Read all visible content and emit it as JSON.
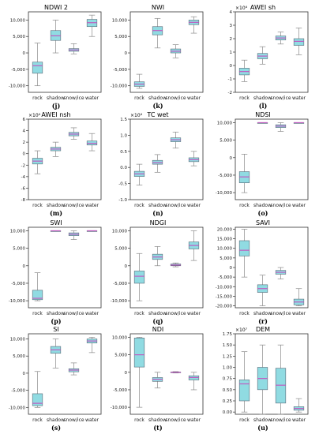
{
  "chart_data": [
    {
      "label": "(j)",
      "type": "box",
      "title": "NDWI 2",
      "categories": [
        "rock",
        "shadow",
        "snow/ice",
        "water"
      ],
      "ylim": [
        -12000,
        12500
      ],
      "yticks": [
        -10000,
        -5000,
        0,
        5000,
        10000
      ],
      "ytick_labels": [
        "-10,000",
        "-5,000",
        "0",
        "5,000",
        "10,000"
      ],
      "exponent": "",
      "boxes": [
        {
          "whislo": -10000,
          "q1": -6200,
          "med": -3900,
          "q3": -2800,
          "whishi": 3000
        },
        {
          "whislo": 0,
          "q1": 3800,
          "med": 5200,
          "q3": 6800,
          "whishi": 10000
        },
        {
          "whislo": -300,
          "q1": 500,
          "med": 900,
          "q3": 1300,
          "whishi": 2800
        },
        {
          "whislo": 5000,
          "q1": 8000,
          "med": 9200,
          "q3": 10200,
          "whishi": 11500
        }
      ]
    },
    {
      "label": "(k)",
      "type": "box",
      "title": "NWI",
      "categories": [
        "rock",
        "shadow",
        "snow/ice",
        "water"
      ],
      "ylim": [
        -12000,
        12500
      ],
      "yticks": [
        -10000,
        -5000,
        0,
        5000,
        10000
      ],
      "ytick_labels": [
        "-10,000",
        "-5,000",
        "0",
        "5,000",
        "10,000"
      ],
      "exponent": "",
      "boxes": [
        {
          "whislo": -10800,
          "q1": -10200,
          "med": -9500,
          "q3": -8800,
          "whishi": -6500
        },
        {
          "whislo": 1500,
          "q1": 5500,
          "med": 6800,
          "q3": 8000,
          "whishi": 10500
        },
        {
          "whislo": -1500,
          "q1": 0,
          "med": 500,
          "q3": 1200,
          "whishi": 2500
        },
        {
          "whislo": 6000,
          "q1": 8600,
          "med": 9300,
          "q3": 10000,
          "whishi": 11000
        }
      ]
    },
    {
      "label": "(l)",
      "type": "box",
      "title": "AWEI sh",
      "categories": [
        "rock",
        "shadow",
        "snow/ice",
        "water"
      ],
      "ylim": [
        -2,
        4
      ],
      "yticks": [
        -2,
        -1,
        0,
        1,
        2,
        3,
        4
      ],
      "ytick_labels": [
        "-2",
        "-1",
        "0",
        "1",
        "2",
        "3",
        "4"
      ],
      "exponent": "×10⁴",
      "boxes": [
        {
          "whislo": -1.2,
          "q1": -0.7,
          "med": -0.45,
          "q3": -0.2,
          "whishi": 0.4
        },
        {
          "whislo": 0.1,
          "q1": 0.5,
          "med": 0.7,
          "q3": 0.9,
          "whishi": 1.4
        },
        {
          "whislo": 1.6,
          "q1": 1.9,
          "med": 2.05,
          "q3": 2.2,
          "whishi": 2.5
        },
        {
          "whislo": 0.8,
          "q1": 1.5,
          "med": 1.8,
          "q3": 2.0,
          "whishi": 2.8
        }
      ]
    },
    {
      "label": "(m)",
      "type": "box",
      "title": "AWEI nsh",
      "categories": [
        "rock",
        "shadow",
        "snow/ice",
        "water"
      ],
      "ylim": [
        -8,
        6
      ],
      "yticks": [
        -8,
        -6,
        -4,
        -2,
        0,
        2,
        4,
        6
      ],
      "ytick_labels": [
        "-8",
        "-6",
        "-4",
        "-2",
        "0",
        "2",
        "4",
        "6"
      ],
      "exponent": "×10⁴",
      "boxes": [
        {
          "whislo": -3.5,
          "q1": -1.8,
          "med": -1.3,
          "q3": -0.8,
          "whishi": 0.5
        },
        {
          "whislo": -0.5,
          "q1": 0.5,
          "med": 0.8,
          "q3": 1.1,
          "whishi": 2.0
        },
        {
          "whislo": 2.5,
          "q1": 3.1,
          "med": 3.4,
          "q3": 3.7,
          "whishi": 4.5
        },
        {
          "whislo": 0.5,
          "q1": 1.5,
          "med": 1.8,
          "q3": 2.2,
          "whishi": 3.5
        }
      ]
    },
    {
      "label": "(n)",
      "type": "box",
      "title": "TC wet",
      "categories": [
        "rock",
        "shadow",
        "snow/ice",
        "water"
      ],
      "ylim": [
        -1.0,
        1.5
      ],
      "yticks": [
        -1.0,
        -0.5,
        0.0,
        0.5,
        1.0,
        1.5
      ],
      "ytick_labels": [
        "-1.0",
        "-0.5",
        "0.0",
        "0.5",
        "1.0",
        "1.5"
      ],
      "exponent": "×10⁴",
      "boxes": [
        {
          "whislo": -0.55,
          "q1": -0.28,
          "med": -0.2,
          "q3": -0.12,
          "whishi": 0.1
        },
        {
          "whislo": -0.15,
          "q1": 0.1,
          "med": 0.15,
          "q3": 0.22,
          "whishi": 0.4
        },
        {
          "whislo": 0.6,
          "q1": 0.8,
          "med": 0.86,
          "q3": 0.92,
          "whishi": 1.1
        },
        {
          "whislo": 0.05,
          "q1": 0.18,
          "med": 0.24,
          "q3": 0.3,
          "whishi": 0.5
        }
      ]
    },
    {
      "label": "(o)",
      "type": "box",
      "title": "NDSI",
      "categories": [
        "rock",
        "shadow",
        "snow/ice",
        "water"
      ],
      "ylim": [
        -12000,
        11000
      ],
      "yticks": [
        -10000,
        -5000,
        0,
        5000,
        10000
      ],
      "ytick_labels": [
        "-10,000",
        "-5,000",
        "0",
        "5,000",
        "10,000"
      ],
      "exponent": "",
      "boxes": [
        {
          "whislo": -10000,
          "q1": -7200,
          "med": -5500,
          "q3": -4000,
          "whishi": 1000
        },
        {
          "whislo": 9900,
          "q1": 9980,
          "med": 10000,
          "q3": 10000,
          "whishi": 10000
        },
        {
          "whislo": 7500,
          "q1": 8600,
          "med": 9000,
          "q3": 9400,
          "whishi": 10000
        },
        {
          "whislo": 9900,
          "q1": 9980,
          "med": 10000,
          "q3": 10000,
          "whishi": 10000
        }
      ]
    },
    {
      "label": "(p)",
      "type": "box",
      "title": "SWI",
      "categories": [
        "rock",
        "shadow",
        "snow/ice",
        "water"
      ],
      "ylim": [
        -12000,
        11000
      ],
      "yticks": [
        -10000,
        -5000,
        0,
        5000,
        10000
      ],
      "ytick_labels": [
        "-10,000",
        "-5,000",
        "0",
        "5,000",
        "10,000"
      ],
      "exponent": "",
      "boxes": [
        {
          "whislo": -10000,
          "q1": -9700,
          "med": -9300,
          "q3": -7000,
          "whishi": -2000
        },
        {
          "whislo": 9900,
          "q1": 9980,
          "med": 10000,
          "q3": 10000,
          "whishi": 10000
        },
        {
          "whislo": 7500,
          "q1": 8600,
          "med": 9000,
          "q3": 9400,
          "whishi": 10000
        },
        {
          "whislo": 9900,
          "q1": 9980,
          "med": 10000,
          "q3": 10000,
          "whishi": 10000
        }
      ]
    },
    {
      "label": "(q)",
      "type": "box",
      "title": "NDGI",
      "categories": [
        "rock",
        "shadow",
        "snow/ice",
        "water"
      ],
      "ylim": [
        -12000,
        11000
      ],
      "yticks": [
        -10000,
        -5000,
        0,
        5000,
        10000
      ],
      "ytick_labels": [
        "-10,000",
        "-5,000",
        "0",
        "5,000",
        "10,000"
      ],
      "exponent": "",
      "boxes": [
        {
          "whislo": -10000,
          "q1": -5000,
          "med": -3000,
          "q3": -1500,
          "whishi": 3500
        },
        {
          "whislo": 0,
          "q1": 1800,
          "med": 2500,
          "q3": 3300,
          "whishi": 5500
        },
        {
          "whislo": -300,
          "q1": 0,
          "med": 200,
          "q3": 500,
          "whishi": 800
        },
        {
          "whislo": 1500,
          "q1": 4800,
          "med": 5800,
          "q3": 6800,
          "whishi": 10000
        }
      ]
    },
    {
      "label": "(r)",
      "type": "box",
      "title": "SAVI",
      "categories": [
        "rock",
        "shadow",
        "snow/ice",
        "water"
      ],
      "ylim": [
        -21000,
        21000
      ],
      "yticks": [
        -20000,
        -15000,
        -10000,
        -5000,
        0,
        5000,
        10000,
        15000,
        20000
      ],
      "ytick_labels": [
        "-20,000",
        "-15,000",
        "-10,000",
        "-5,000",
        "0",
        "5,000",
        "10,000",
        "15,000",
        "20,000"
      ],
      "exponent": "",
      "boxes": [
        {
          "whislo": -5000,
          "q1": 6000,
          "med": 9000,
          "q3": 14000,
          "whishi": 20000
        },
        {
          "whislo": -20000,
          "q1": -13000,
          "med": -11000,
          "q3": -9000,
          "whishi": -4000
        },
        {
          "whislo": -6000,
          "q1": -3500,
          "med": -2500,
          "q3": -1500,
          "whishi": 0
        },
        {
          "whislo": -20000,
          "q1": -19500,
          "med": -18000,
          "q3": -16500,
          "whishi": -11000
        }
      ]
    },
    {
      "label": "(s)",
      "type": "box",
      "title": "SI",
      "categories": [
        "rock",
        "shadow",
        "snow/ice",
        "water"
      ],
      "ylim": [
        -12000,
        11500
      ],
      "yticks": [
        -10000,
        -5000,
        0,
        5000,
        10000
      ],
      "ytick_labels": [
        "-10,000",
        "-5,000",
        "0",
        "5,000",
        "10,000"
      ],
      "exponent": "",
      "boxes": [
        {
          "whislo": -10000,
          "q1": -9500,
          "med": -8800,
          "q3": -6000,
          "whishi": 500
        },
        {
          "whislo": 1500,
          "q1": 5800,
          "med": 6800,
          "q3": 7800,
          "whishi": 10000
        },
        {
          "whislo": -500,
          "q1": 400,
          "med": 900,
          "q3": 1300,
          "whishi": 3000
        },
        {
          "whislo": 6000,
          "q1": 8800,
          "med": 9400,
          "q3": 10000,
          "whishi": 10500
        }
      ]
    },
    {
      "label": "(t)",
      "type": "box",
      "title": "NDI",
      "categories": [
        "rock",
        "shadow",
        "snow/ice",
        "water"
      ],
      "ylim": [
        -12000,
        11000
      ],
      "yticks": [
        -10000,
        -5000,
        0,
        5000,
        10000
      ],
      "ytick_labels": [
        "-10,000",
        "-5,000",
        "0",
        "5,000",
        "10,000"
      ],
      "exponent": "",
      "boxes": [
        {
          "whislo": -10000,
          "q1": 1500,
          "med": 5000,
          "q3": 9800,
          "whishi": 10000
        },
        {
          "whislo": -4500,
          "q1": -2600,
          "med": -2000,
          "q3": -1500,
          "whishi": 0
        },
        {
          "whislo": -200,
          "q1": -100,
          "med": 0,
          "q3": 100,
          "whishi": 200
        },
        {
          "whislo": -5000,
          "q1": -2200,
          "med": -1500,
          "q3": -1000,
          "whishi": 0
        }
      ]
    },
    {
      "label": "(u)",
      "type": "box",
      "title": "DEM",
      "categories": [
        "rock",
        "shadow",
        "snow/ice",
        "water"
      ],
      "ylim": [
        -0.05,
        1.75
      ],
      "yticks": [
        0.0,
        0.25,
        0.5,
        0.75,
        1.0,
        1.25,
        1.5,
        1.75
      ],
      "ytick_labels": [
        "0.00",
        "0.25",
        "0.50",
        "0.75",
        "1.00",
        "1.25",
        "1.50",
        "1.75"
      ],
      "exponent": "×10⁷",
      "boxes": [
        {
          "whislo": 0.0,
          "q1": 0.25,
          "med": 0.63,
          "q3": 0.72,
          "whishi": 1.35
        },
        {
          "whislo": -0.05,
          "q1": 0.5,
          "med": 0.75,
          "q3": 1.0,
          "whishi": 1.5
        },
        {
          "whislo": -0.05,
          "q1": 0.2,
          "med": 0.6,
          "q3": 0.98,
          "whishi": 1.5
        },
        {
          "whislo": 0.0,
          "q1": 0.04,
          "med": 0.08,
          "q3": 0.12,
          "whishi": 0.3
        }
      ]
    }
  ],
  "colors": {
    "box_fill": "#90dbe2",
    "box_edge": "#5a6a78",
    "median": "#c05cc0",
    "whisker": "#8a8a8a",
    "outlier": "#c8c8c8",
    "axis": "#333333"
  }
}
